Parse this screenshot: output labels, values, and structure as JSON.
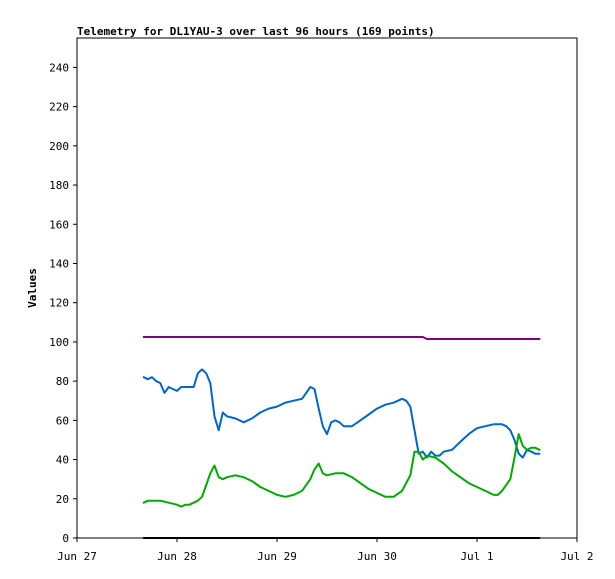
{
  "chart_data": {
    "type": "line",
    "title": "Telemetry for DL1YAU-3 over last 96 hours (169 points)",
    "ylabel": "Values",
    "xlabel": "",
    "ylim": [
      0,
      255
    ],
    "xlim": [
      "2023-06-27T00:00",
      "2023-07-02T00:00"
    ],
    "y_ticks": [
      0,
      20,
      40,
      60,
      80,
      100,
      120,
      140,
      160,
      180,
      200,
      220,
      240
    ],
    "x_ticks": [
      {
        "label": "Jun 27",
        "x": "2023-06-27T00:00"
      },
      {
        "label": "Jun 28",
        "x": "2023-06-28T00:00"
      },
      {
        "label": "Jun 29",
        "x": "2023-06-29T00:00"
      },
      {
        "label": "Jun 30",
        "x": "2023-06-30T00:00"
      },
      {
        "label": "Jul 1",
        "x": "2023-07-01T00:00"
      },
      {
        "label": "Jul 2",
        "x": "2023-07-02T00:00"
      }
    ],
    "grid": false,
    "legend": "none",
    "series": [
      {
        "color": "#800080",
        "points": [
          [
            "2023-06-27T16:00",
            102.5
          ],
          [
            "2023-06-28T12:00",
            102.5
          ],
          [
            "2023-06-29T12:00",
            102.5
          ],
          [
            "2023-06-30T11:00",
            102.5
          ],
          [
            "2023-06-30T12:00",
            101.5
          ],
          [
            "2023-07-01T12:00",
            101.5
          ],
          [
            "2023-07-01T15:00",
            101.5
          ]
        ]
      },
      {
        "color": "#0066cc",
        "points": [
          [
            "2023-06-27T16:00",
            82
          ],
          [
            "2023-06-27T17:00",
            81
          ],
          [
            "2023-06-27T18:00",
            82
          ],
          [
            "2023-06-27T19:00",
            80
          ],
          [
            "2023-06-27T20:00",
            79
          ],
          [
            "2023-06-27T21:00",
            74
          ],
          [
            "2023-06-27T22:00",
            77
          ],
          [
            "2023-06-27T23:00",
            76
          ],
          [
            "2023-06-28T00:00",
            75
          ],
          [
            "2023-06-28T01:00",
            77
          ],
          [
            "2023-06-28T02:00",
            77
          ],
          [
            "2023-06-28T03:00",
            77
          ],
          [
            "2023-06-28T04:00",
            77
          ],
          [
            "2023-06-28T05:00",
            84
          ],
          [
            "2023-06-28T06:00",
            86
          ],
          [
            "2023-06-28T07:00",
            84
          ],
          [
            "2023-06-28T08:00",
            79
          ],
          [
            "2023-06-28T09:00",
            62
          ],
          [
            "2023-06-28T10:00",
            55
          ],
          [
            "2023-06-28T11:00",
            64
          ],
          [
            "2023-06-28T12:00",
            62
          ],
          [
            "2023-06-28T14:00",
            61
          ],
          [
            "2023-06-28T16:00",
            59
          ],
          [
            "2023-06-28T18:00",
            61
          ],
          [
            "2023-06-28T20:00",
            64
          ],
          [
            "2023-06-28T22:00",
            66
          ],
          [
            "2023-06-29T00:00",
            67
          ],
          [
            "2023-06-29T02:00",
            69
          ],
          [
            "2023-06-29T04:00",
            70
          ],
          [
            "2023-06-29T06:00",
            71
          ],
          [
            "2023-06-29T07:00",
            74
          ],
          [
            "2023-06-29T08:00",
            77
          ],
          [
            "2023-06-29T09:00",
            76
          ],
          [
            "2023-06-29T10:00",
            66
          ],
          [
            "2023-06-29T11:00",
            57
          ],
          [
            "2023-06-29T12:00",
            53
          ],
          [
            "2023-06-29T13:00",
            59
          ],
          [
            "2023-06-29T14:00",
            60
          ],
          [
            "2023-06-29T15:00",
            59
          ],
          [
            "2023-06-29T16:00",
            57
          ],
          [
            "2023-06-29T18:00",
            57
          ],
          [
            "2023-06-29T20:00",
            60
          ],
          [
            "2023-06-29T22:00",
            63
          ],
          [
            "2023-06-30T00:00",
            66
          ],
          [
            "2023-06-30T02:00",
            68
          ],
          [
            "2023-06-30T04:00",
            69
          ],
          [
            "2023-06-30T06:00",
            71
          ],
          [
            "2023-06-30T07:00",
            70
          ],
          [
            "2023-06-30T08:00",
            67
          ],
          [
            "2023-06-30T09:00",
            55
          ],
          [
            "2023-06-30T10:00",
            43
          ],
          [
            "2023-06-30T11:00",
            44
          ],
          [
            "2023-06-30T12:00",
            41
          ],
          [
            "2023-06-30T13:00",
            44
          ],
          [
            "2023-06-30T14:00",
            42
          ],
          [
            "2023-06-30T15:00",
            42
          ],
          [
            "2023-06-30T16:00",
            44
          ],
          [
            "2023-06-30T18:00",
            45
          ],
          [
            "2023-06-30T20:00",
            49
          ],
          [
            "2023-06-30T22:00",
            53
          ],
          [
            "2023-07-01T00:00",
            56
          ],
          [
            "2023-07-01T02:00",
            57
          ],
          [
            "2023-07-01T04:00",
            58
          ],
          [
            "2023-07-01T06:00",
            58
          ],
          [
            "2023-07-01T07:00",
            57
          ],
          [
            "2023-07-01T08:00",
            55
          ],
          [
            "2023-07-01T09:00",
            50
          ],
          [
            "2023-07-01T10:00",
            43
          ],
          [
            "2023-07-01T11:00",
            41
          ],
          [
            "2023-07-01T12:00",
            45
          ],
          [
            "2023-07-01T13:00",
            44
          ],
          [
            "2023-07-01T14:00",
            43
          ],
          [
            "2023-07-01T15:00",
            43
          ]
        ]
      },
      {
        "color": "#00aa00",
        "points": [
          [
            "2023-06-27T16:00",
            18
          ],
          [
            "2023-06-27T17:00",
            19
          ],
          [
            "2023-06-27T18:00",
            19
          ],
          [
            "2023-06-27T20:00",
            19
          ],
          [
            "2023-06-27T22:00",
            18
          ],
          [
            "2023-06-28T00:00",
            17
          ],
          [
            "2023-06-28T01:00",
            16
          ],
          [
            "2023-06-28T02:00",
            17
          ],
          [
            "2023-06-28T03:00",
            17
          ],
          [
            "2023-06-28T04:00",
            18
          ],
          [
            "2023-06-28T05:00",
            19
          ],
          [
            "2023-06-28T06:00",
            21
          ],
          [
            "2023-06-28T07:00",
            27
          ],
          [
            "2023-06-28T08:00",
            33
          ],
          [
            "2023-06-28T09:00",
            37
          ],
          [
            "2023-06-28T10:00",
            31
          ],
          [
            "2023-06-28T11:00",
            30
          ],
          [
            "2023-06-28T12:00",
            31
          ],
          [
            "2023-06-28T14:00",
            32
          ],
          [
            "2023-06-28T16:00",
            31
          ],
          [
            "2023-06-28T18:00",
            29
          ],
          [
            "2023-06-28T20:00",
            26
          ],
          [
            "2023-06-28T22:00",
            24
          ],
          [
            "2023-06-29T00:00",
            22
          ],
          [
            "2023-06-29T02:00",
            21
          ],
          [
            "2023-06-29T04:00",
            22
          ],
          [
            "2023-06-29T06:00",
            24
          ],
          [
            "2023-06-29T08:00",
            30
          ],
          [
            "2023-06-29T09:00",
            35
          ],
          [
            "2023-06-29T10:00",
            38
          ],
          [
            "2023-06-29T11:00",
            33
          ],
          [
            "2023-06-29T12:00",
            32
          ],
          [
            "2023-06-29T14:00",
            33
          ],
          [
            "2023-06-29T16:00",
            33
          ],
          [
            "2023-06-29T18:00",
            31
          ],
          [
            "2023-06-29T20:00",
            28
          ],
          [
            "2023-06-29T22:00",
            25
          ],
          [
            "2023-06-30T00:00",
            23
          ],
          [
            "2023-06-30T02:00",
            21
          ],
          [
            "2023-06-30T04:00",
            21
          ],
          [
            "2023-06-30T06:00",
            24
          ],
          [
            "2023-06-30T08:00",
            32
          ],
          [
            "2023-06-30T09:00",
            44
          ],
          [
            "2023-06-30T10:00",
            44
          ],
          [
            "2023-06-30T11:00",
            40
          ],
          [
            "2023-06-30T12:00",
            42
          ],
          [
            "2023-06-30T14:00",
            41
          ],
          [
            "2023-06-30T16:00",
            38
          ],
          [
            "2023-06-30T18:00",
            34
          ],
          [
            "2023-06-30T20:00",
            31
          ],
          [
            "2023-06-30T22:00",
            28
          ],
          [
            "2023-07-01T00:00",
            26
          ],
          [
            "2023-07-01T02:00",
            24
          ],
          [
            "2023-07-01T04:00",
            22
          ],
          [
            "2023-07-01T05:00",
            22
          ],
          [
            "2023-07-01T06:00",
            24
          ],
          [
            "2023-07-01T08:00",
            30
          ],
          [
            "2023-07-01T09:00",
            41
          ],
          [
            "2023-07-01T10:00",
            53
          ],
          [
            "2023-07-01T11:00",
            47
          ],
          [
            "2023-07-01T12:00",
            45
          ],
          [
            "2023-07-01T13:00",
            46
          ],
          [
            "2023-07-01T14:00",
            46
          ],
          [
            "2023-07-01T15:00",
            45
          ]
        ]
      },
      {
        "color": "#000000",
        "points": [
          [
            "2023-06-27T16:00",
            0
          ],
          [
            "2023-07-01T15:00",
            0
          ]
        ]
      }
    ]
  }
}
